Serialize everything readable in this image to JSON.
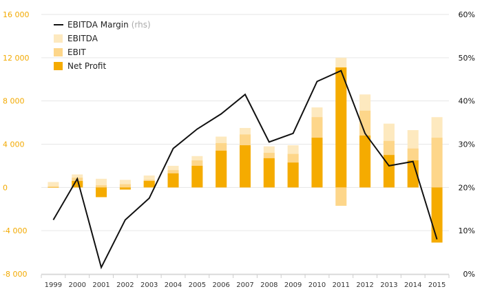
{
  "chart_data": {
    "type": "bar",
    "categories": [
      "1999",
      "2000",
      "2001",
      "2002",
      "2003",
      "2004",
      "2005",
      "2006",
      "2007",
      "2008",
      "2009",
      "2010",
      "2011",
      "2012",
      "2013",
      "2014",
      "2015"
    ],
    "series": [
      {
        "name": "EBITDA",
        "kind": "bar",
        "color": "#fde9bf",
        "values": [
          500,
          1200,
          800,
          700,
          1100,
          2000,
          2900,
          4700,
          5500,
          3800,
          3900,
          7400,
          12000,
          8600,
          5900,
          5300,
          6500
        ]
      },
      {
        "name": "EBIT",
        "kind": "bar",
        "color": "#fdd68a",
        "values": [
          100,
          900,
          200,
          300,
          700,
          1600,
          2500,
          4100,
          4900,
          3200,
          3100,
          6500,
          -1700,
          7100,
          4300,
          3600,
          4600
        ]
      },
      {
        "name": "Net Profit",
        "kind": "bar",
        "color": "#f5ab00",
        "values": [
          0,
          600,
          -900,
          -200,
          600,
          1300,
          2000,
          3400,
          3900,
          2700,
          2300,
          4600,
          11100,
          4800,
          3000,
          2500,
          -5100
        ]
      },
      {
        "name": "EBITDA Margin",
        "name_suffix": "(rhs)",
        "kind": "line",
        "color": "#111111",
        "axis": "right",
        "values": [
          12.5,
          22.0,
          1.5,
          12.5,
          17.5,
          29.0,
          33.5,
          37.0,
          41.5,
          30.5,
          32.5,
          44.5,
          47.0,
          32.5,
          25.0,
          26.0,
          8.0
        ]
      }
    ],
    "y_left": {
      "min": -8000,
      "max": 16000,
      "ticks": [
        -8000,
        -4000,
        0,
        4000,
        8000,
        12000,
        16000
      ],
      "tick_labels": [
        "-8 000",
        "-4 000",
        "0",
        "4 000",
        "8 000",
        "12 000",
        "16 000"
      ],
      "color": "#f2a900"
    },
    "y_right": {
      "min": 0,
      "max": 60,
      "ticks": [
        0,
        10,
        20,
        30,
        40,
        50,
        60
      ],
      "tick_labels": [
        "0%",
        "10%",
        "20%",
        "30%",
        "40%",
        "50%",
        "60%"
      ]
    },
    "legend": {
      "placement": "top-left",
      "order": [
        "EBITDA Margin",
        "EBITDA",
        "EBIT",
        "Net Profit"
      ]
    },
    "grid": true
  }
}
